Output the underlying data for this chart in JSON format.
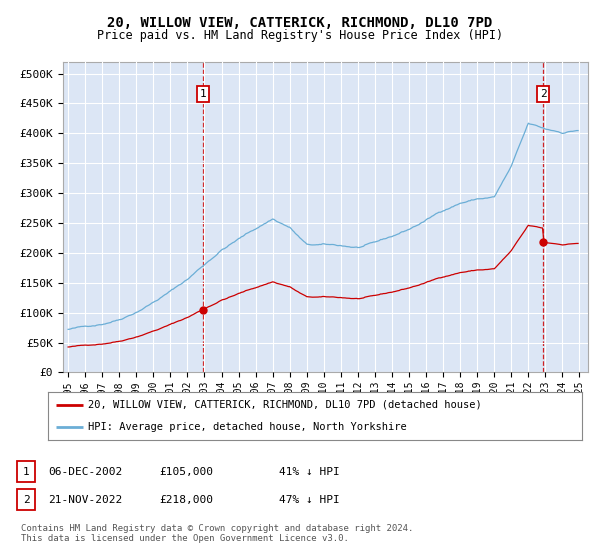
{
  "title": "20, WILLOW VIEW, CATTERICK, RICHMOND, DL10 7PD",
  "subtitle": "Price paid vs. HM Land Registry's House Price Index (HPI)",
  "legend_line1": "20, WILLOW VIEW, CATTERICK, RICHMOND, DL10 7PD (detached house)",
  "legend_line2": "HPI: Average price, detached house, North Yorkshire",
  "footnote1": "Contains HM Land Registry data © Crown copyright and database right 2024.",
  "footnote2": "This data is licensed under the Open Government Licence v3.0.",
  "annotation1_label": "1",
  "annotation1_date": "06-DEC-2002",
  "annotation1_price": "£105,000",
  "annotation1_note": "41% ↓ HPI",
  "annotation2_label": "2",
  "annotation2_date": "21-NOV-2022",
  "annotation2_price": "£218,000",
  "annotation2_note": "47% ↓ HPI",
  "hpi_color": "#6baed6",
  "price_color": "#cc0000",
  "vline_color": "#cc0000",
  "plot_bg": "#dce6f5",
  "sale1_x": 2002.917,
  "sale1_y": 105000,
  "sale2_x": 2022.875,
  "sale2_y": 218000,
  "ylim": [
    0,
    520000
  ],
  "yticks": [
    0,
    50000,
    100000,
    150000,
    200000,
    250000,
    300000,
    350000,
    400000,
    450000,
    500000
  ],
  "ytick_labels": [
    "£0",
    "£50K",
    "£100K",
    "£150K",
    "£200K",
    "£250K",
    "£300K",
    "£350K",
    "£400K",
    "£450K",
    "£500K"
  ],
  "xlim_start": 1994.7,
  "xlim_end": 2025.5,
  "xtick_years": [
    1995,
    1996,
    1997,
    1998,
    1999,
    2000,
    2001,
    2002,
    2003,
    2004,
    2005,
    2006,
    2007,
    2008,
    2009,
    2010,
    2011,
    2012,
    2013,
    2014,
    2015,
    2016,
    2017,
    2018,
    2019,
    2020,
    2021,
    2022,
    2023,
    2024,
    2025
  ]
}
